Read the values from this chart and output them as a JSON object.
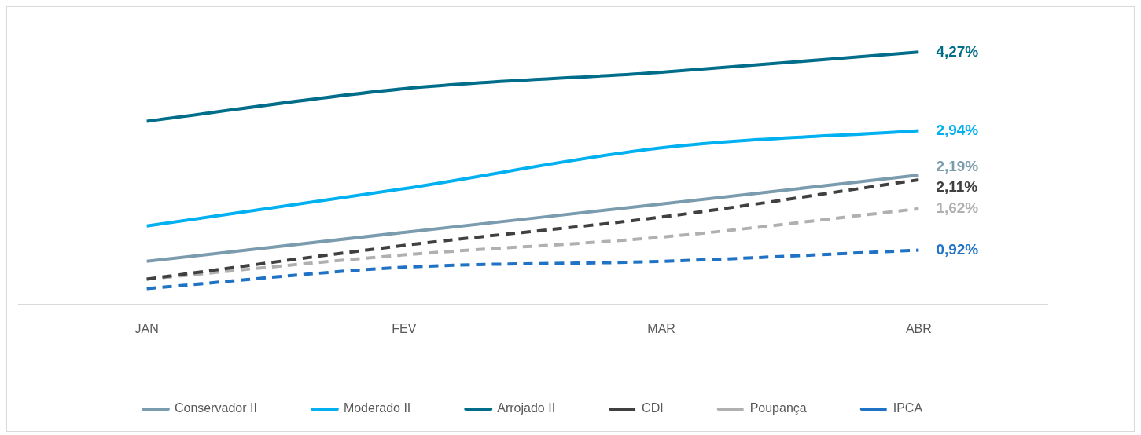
{
  "chart_data": {
    "type": "line",
    "categories": [
      "JAN",
      "FEV",
      "MAR",
      "ABR"
    ],
    "series": [
      {
        "name": "Conservador II",
        "color": "#7b9bae",
        "line_style": "solid",
        "values": [
          0.73,
          1.22,
          1.7,
          2.19
        ],
        "value_labels": [
          null,
          null,
          null,
          "2,19%"
        ]
      },
      {
        "name": "Moderado II",
        "color": "#00b0f0",
        "line_style": "solid",
        "values": [
          1.33,
          1.96,
          2.65,
          2.94
        ],
        "value_labels": [
          null,
          null,
          null,
          "2,94%"
        ]
      },
      {
        "name": "Arrojado II",
        "color": "#006d8a",
        "line_style": "solid",
        "values": [
          3.1,
          3.65,
          3.93,
          4.27
        ],
        "value_labels": [
          null,
          null,
          null,
          "4,27%"
        ]
      },
      {
        "name": "CDI",
        "color": "#404040",
        "line_style": "dashed",
        "values": [
          0.43,
          1.0,
          1.48,
          2.11
        ],
        "value_labels": [
          null,
          null,
          null,
          "2,11%"
        ]
      },
      {
        "name": "Poupança",
        "color": "#b0b0b0",
        "line_style": "dashed",
        "values": [
          0.43,
          0.84,
          1.14,
          1.62
        ],
        "value_labels": [
          null,
          null,
          null,
          "1,62%"
        ]
      },
      {
        "name": "IPCA",
        "color": "#1f72c4",
        "line_style": "dashed",
        "values": [
          0.27,
          0.63,
          0.73,
          0.92
        ],
        "value_labels": [
          null,
          null,
          null,
          "0,92%"
        ]
      }
    ],
    "marker": "none",
    "legend": "bottom",
    "tick_labels": "x",
    "grid": false
  }
}
